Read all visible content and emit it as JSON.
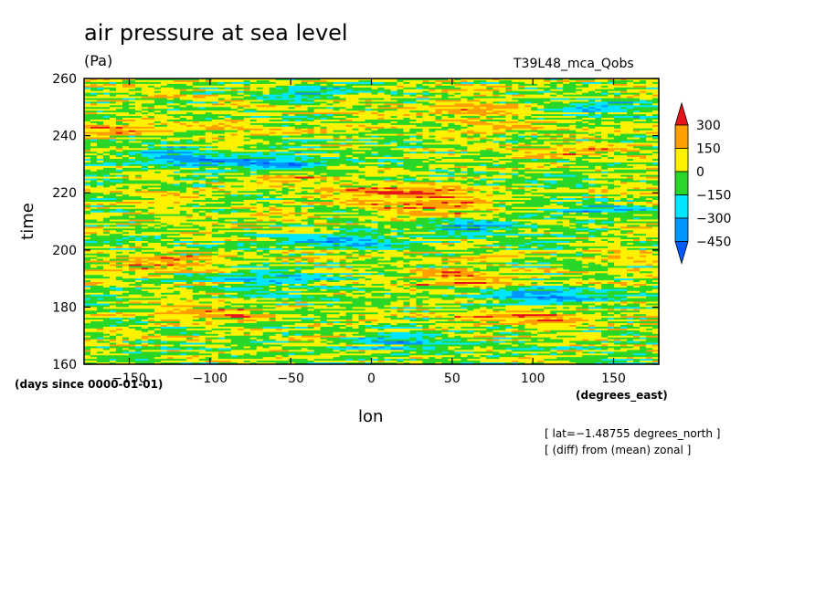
{
  "chart_data": {
    "type": "heatmap",
    "title": "air pressure at sea level",
    "units": "(Pa)",
    "run_label": "T39L48_mca_Qobs",
    "xlabel": "lon",
    "ylabel": "time",
    "x_units": "(degrees_east)",
    "y_units": "(days since 0000-01-01)",
    "xlim": [
      -178,
      178
    ],
    "ylim": [
      160,
      260
    ],
    "x_ticks": [
      -150,
      -100,
      -50,
      0,
      50,
      100,
      150
    ],
    "x_tick_labels": [
      "−150",
      "−100",
      "−50",
      "0",
      "50",
      "100",
      "150"
    ],
    "y_ticks": [
      160,
      180,
      200,
      220,
      240,
      260
    ],
    "y_tick_labels": [
      "160",
      "180",
      "200",
      "220",
      "240",
      "260"
    ],
    "colorbar": {
      "levels": [
        300,
        150,
        0,
        -150,
        -300,
        -450
      ],
      "labels": [
        "300",
        "150",
        "0",
        "−150",
        "−300",
        "−450"
      ],
      "colors": [
        "#e8141c",
        "#ffa000",
        "#fff200",
        "#28d728",
        "#00e6ff",
        "#0096ff",
        "#005aff"
      ]
    },
    "annotations": [
      "[ lat=−1.48755 degrees_north ]",
      "[ (diff) from (mean) zonal ]"
    ],
    "features": [
      {
        "lon": -60,
        "time": 230,
        "value": -340
      },
      {
        "lon": -120,
        "time": 232,
        "value": -300
      },
      {
        "lon": -45,
        "time": 225,
        "value": 200
      },
      {
        "lon": -20,
        "time": 203,
        "value": -280
      },
      {
        "lon": 40,
        "time": 215,
        "value": 180
      },
      {
        "lon": 60,
        "time": 208,
        "value": -300
      },
      {
        "lon": 120,
        "time": 235,
        "value": 190
      },
      {
        "lon": 140,
        "time": 214,
        "value": -260
      },
      {
        "lon": -130,
        "time": 195,
        "value": 170
      },
      {
        "lon": -60,
        "time": 190,
        "value": -280
      },
      {
        "lon": 60,
        "time": 190,
        "value": 220
      },
      {
        "lon": 110,
        "time": 184,
        "value": -300
      },
      {
        "lon": -100,
        "time": 178,
        "value": 180
      },
      {
        "lon": 100,
        "time": 176,
        "value": 250
      },
      {
        "lon": 20,
        "time": 168,
        "value": -250
      },
      {
        "lon": -150,
        "time": 243,
        "value": 160
      },
      {
        "lon": 50,
        "time": 248,
        "value": 210
      },
      {
        "lon": 150,
        "time": 250,
        "value": -240
      },
      {
        "lon": -40,
        "time": 255,
        "value": -200
      },
      {
        "lon": 20,
        "time": 220,
        "value": 280
      }
    ]
  }
}
